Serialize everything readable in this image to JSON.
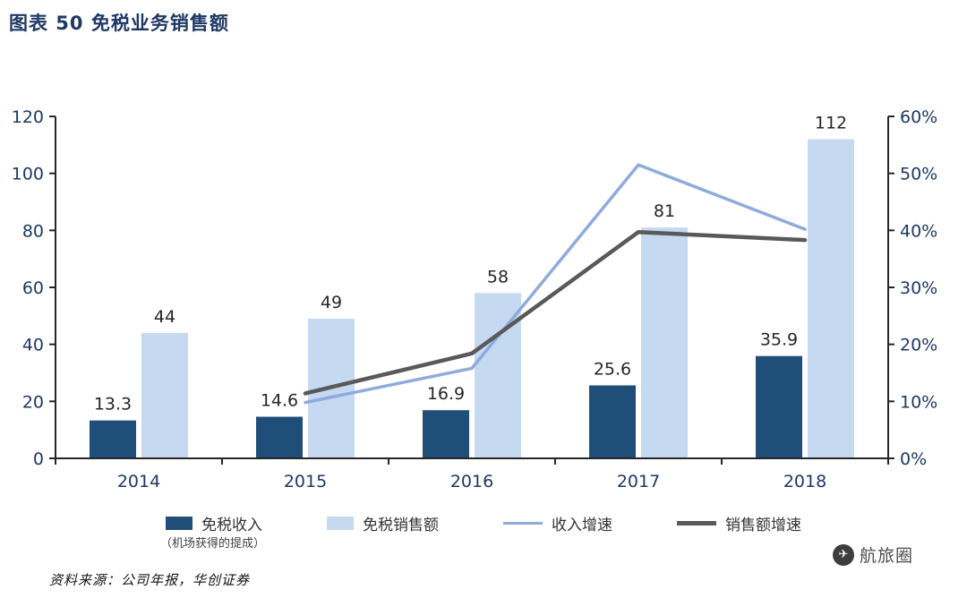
{
  "page": {
    "title": "图表 50 免税业务销售额",
    "source": "资料来源：公司年报，华创证券",
    "watermark": "航旅圈"
  },
  "colors": {
    "title_text": "#1F3864",
    "axis_text": "#1F3864",
    "axis_line": "#262626",
    "value_label": "#262626",
    "dark_bar": "#1F4E79",
    "light_bar": "#C5D9F1",
    "blue_line": "#8FAADC",
    "gray_line": "#595959"
  },
  "chart_data": {
    "type": "combo",
    "categories": [
      "2014",
      "2015",
      "2016",
      "2017",
      "2018"
    ],
    "series": [
      {
        "name": "免税收入",
        "note": "（机场获得的提成）",
        "type": "bar",
        "axis": "left",
        "color": "#1F4E79",
        "values": [
          13.3,
          14.6,
          16.9,
          25.6,
          35.9
        ],
        "labels": [
          "13.3",
          "14.6",
          "16.9",
          "25.6",
          "35.9"
        ]
      },
      {
        "name": "免税销售额",
        "type": "bar",
        "axis": "left",
        "color": "#C5D9F1",
        "values": [
          44,
          49,
          58,
          81,
          112
        ],
        "labels": [
          "44",
          "49",
          "58",
          "81",
          "112"
        ]
      },
      {
        "name": "收入增速",
        "type": "line",
        "axis": "right",
        "color": "#8FAADC",
        "values": [
          null,
          9.8,
          15.8,
          51.5,
          40.2
        ]
      },
      {
        "name": "销售额增速",
        "type": "line",
        "axis": "right",
        "color": "#595959",
        "values": [
          null,
          11.4,
          18.4,
          39.7,
          38.3
        ]
      }
    ],
    "left_axis": {
      "min": 0,
      "max": 120,
      "step": 20,
      "ticks": [
        "0",
        "20",
        "40",
        "60",
        "80",
        "100",
        "120"
      ]
    },
    "right_axis": {
      "min": 0,
      "max": 60,
      "step": 10,
      "ticks": [
        "0%",
        "10%",
        "20%",
        "30%",
        "40%",
        "50%",
        "60%"
      ]
    },
    "grid": "off",
    "legend_position": "bottom"
  }
}
